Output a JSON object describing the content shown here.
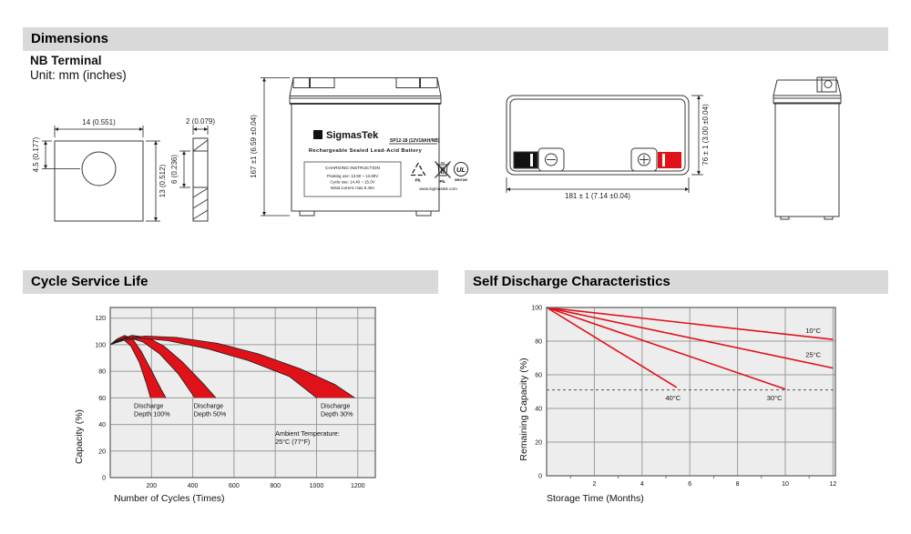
{
  "colors": {
    "header_bg": "#d9d9d9",
    "red": "#e01219",
    "plot_bg": "#ededed",
    "grid": "#9a9a9a",
    "plot_border": "#666666",
    "line_dark": "#3a3a3a"
  },
  "sections": {
    "dimensions": {
      "title": "Dimensions",
      "subtitle": "NB Terminal",
      "unit_note": "Unit: mm (inches)"
    },
    "cycle": {
      "title": "Cycle Service Life"
    },
    "self_discharge": {
      "title": "Self Discharge Characteristics"
    }
  },
  "drawings": {
    "terminal_front": {
      "width_label": "14 (0.551)",
      "hole_offset_label": "4.5 (0.177)",
      "height_label": "13 (0.512)"
    },
    "terminal_side": {
      "thickness_label": "2 (0.079)",
      "mid_label": "6 (0.236)"
    },
    "battery_front": {
      "height_label": "167 ±1 (6.59 ±0.04)",
      "label": {
        "logo_sigma": "Σ",
        "brand": "SigmasTek",
        "model": "SP12-18 (12V18AH/NB)",
        "type_line": "Rechargeable Sealed Lead-Acid Battery",
        "charging_title": "CHARGING INSTRUCTION",
        "charging_lines": [
          "Floating use: 13.50 ~ 13.80V",
          "Cycle use: 14.40 ~ 15.0V",
          "Initial current: max 5.40A"
        ],
        "pb_recycle": "Pb.",
        "pb_bin": "Pb.",
        "ul_letters": "UL",
        "ul_text": "MH47169",
        "website": "www.sigmastek.com"
      }
    },
    "battery_top": {
      "width_label": "181 ± 1 (7.14 ±0.04)",
      "depth_label": "76 ± 1 (3.00 ±0.04)"
    }
  },
  "chart_data": [
    {
      "type": "area",
      "title": "Cycle Service Life",
      "xlabel": "Number of Cycles (Times)",
      "ylabel": "Capacity (%)",
      "xlim": [
        0,
        1285
      ],
      "ylim": [
        0,
        128
      ],
      "xticks": [
        200,
        400,
        600,
        800,
        1000,
        1200
      ],
      "yticks": [
        0,
        20,
        40,
        60,
        80,
        100,
        120
      ],
      "grid": true,
      "legend_position": "none",
      "bands": [
        {
          "name": "Discharge Depth 100%",
          "upper": [
            [
              0,
              100
            ],
            [
              35,
              104.5
            ],
            [
              70,
              107
            ],
            [
              110,
              104
            ],
            [
              150,
              95
            ],
            [
              205,
              79
            ],
            [
              248,
              66
            ],
            [
              270,
              60
            ]
          ],
          "lower": [
            [
              0,
              100
            ],
            [
              30,
              103
            ],
            [
              60,
              104.5
            ],
            [
              100,
              99
            ],
            [
              140,
              87
            ],
            [
              175,
              71
            ],
            [
              195,
              60
            ]
          ]
        },
        {
          "name": "Discharge Depth 50%",
          "upper": [
            [
              0,
              100
            ],
            [
              45,
              104
            ],
            [
              105,
              107
            ],
            [
              180,
              105.5
            ],
            [
              260,
              99
            ],
            [
              350,
              87
            ],
            [
              455,
              70
            ],
            [
              512,
              60
            ]
          ],
          "lower": [
            [
              0,
              100
            ],
            [
              40,
              103
            ],
            [
              85,
              105.5
            ],
            [
              160,
              102
            ],
            [
              240,
              93
            ],
            [
              330,
              78
            ],
            [
              410,
              60
            ]
          ]
        },
        {
          "name": "Discharge Depth 30%",
          "upper": [
            [
              0,
              100
            ],
            [
              70,
              104.5
            ],
            [
              170,
              106.5
            ],
            [
              320,
              105.5
            ],
            [
              520,
              101
            ],
            [
              720,
              93
            ],
            [
              920,
              82
            ],
            [
              1090,
              70
            ],
            [
              1185,
              60
            ]
          ],
          "lower": [
            [
              0,
              100
            ],
            [
              60,
              103
            ],
            [
              140,
              105
            ],
            [
              280,
              103
            ],
            [
              470,
              97
            ],
            [
              670,
              88
            ],
            [
              870,
              76
            ],
            [
              1000,
              60
            ]
          ]
        }
      ],
      "annotations": [
        {
          "lines": [
            "Discharge",
            "Depth 100%"
          ],
          "x": 115,
          "y": 52.5,
          "anchor": "start"
        },
        {
          "lines": [
            "Discharge",
            "Depth 50%"
          ],
          "x": 405,
          "y": 52.5,
          "anchor": "start"
        },
        {
          "lines": [
            "Discharge",
            "Depth 30%"
          ],
          "x": 1020,
          "y": 52.5,
          "anchor": "start"
        },
        {
          "lines": [
            "Ambient Temperature:",
            "25°C (77°F)"
          ],
          "x": 800,
          "y": 31.5,
          "anchor": "start"
        }
      ]
    },
    {
      "type": "line",
      "title": "Self Discharge Characteristics",
      "xlabel": "Storage Time (Months)",
      "ylabel": "Remaining Capacity (%)",
      "xlim": [
        0,
        12.1
      ],
      "ylim": [
        0,
        100
      ],
      "xticks": [
        2,
        4,
        6,
        8,
        10,
        12
      ],
      "minor_xticks": [
        1,
        3,
        5,
        7,
        9,
        11
      ],
      "yticks": [
        0,
        20,
        40,
        60,
        80,
        100
      ],
      "grid": true,
      "dashed_y": 51,
      "series": [
        {
          "name": "10°C",
          "points": [
            [
              0,
              100
            ],
            [
              12,
              81
            ]
          ],
          "label_x": 10.85,
          "label_y": 85,
          "anchor": "start"
        },
        {
          "name": "25°C",
          "points": [
            [
              0,
              100
            ],
            [
              12,
              64
            ]
          ],
          "label_x": 10.85,
          "label_y": 70.5,
          "anchor": "start"
        },
        {
          "name": "30°C",
          "points": [
            [
              0,
              100
            ],
            [
              10,
              51.5
            ]
          ],
          "label_x": 9.55,
          "label_y": 45,
          "anchor": "middle"
        },
        {
          "name": "40°C",
          "points": [
            [
              0,
              100
            ],
            [
              5.45,
              52.5
            ]
          ],
          "label_x": 5.3,
          "label_y": 45,
          "anchor": "middle"
        }
      ]
    }
  ]
}
